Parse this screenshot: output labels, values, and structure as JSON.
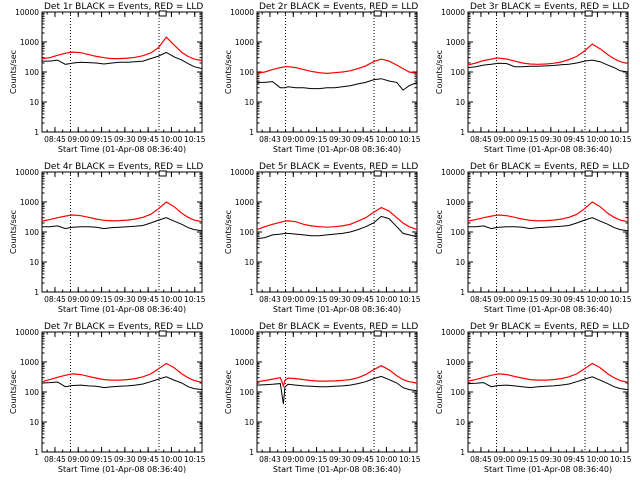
{
  "colors": {
    "events": "#000000",
    "lld": "#ff0000",
    "background": "#ffffff"
  },
  "chart_data": [
    {
      "type": "line",
      "detector": "1r",
      "title": "Det 1r BLACK = Events, RED = LLD",
      "xlabel": "Start Time (01-Apr-08 08:36:40)",
      "ylabel": "Counts/sec",
      "yscale": "log",
      "ylim": [
        1,
        10000
      ],
      "xlim_minutes": [
        0,
        103
      ],
      "x_tick_labels": [
        "08:45",
        "09:00",
        "09:15",
        "09:30",
        "09:45",
        "10:00",
        "10:15"
      ],
      "y_tick_labels": [
        "1",
        "10",
        "100",
        "1000",
        "10000"
      ],
      "marker_times": [
        "08:55",
        "09:52"
      ],
      "box_time": "09:54",
      "x_minutes": [
        0,
        5,
        10,
        15,
        18,
        20,
        25,
        30,
        35,
        40,
        45,
        50,
        55,
        60,
        65,
        70,
        75,
        80,
        85,
        90,
        94,
        98,
        103
      ],
      "series": [
        {
          "name": "Events",
          "values": [
            230,
            230,
            250,
            180,
            190,
            200,
            210,
            205,
            200,
            185,
            200,
            210,
            210,
            220,
            230,
            280,
            340,
            450,
            320,
            250,
            190,
            150,
            130
          ]
        },
        {
          "name": "LLD",
          "values": [
            280,
            300,
            360,
            420,
            450,
            460,
            440,
            380,
            330,
            300,
            280,
            280,
            290,
            310,
            350,
            430,
            650,
            1450,
            800,
            450,
            330,
            270,
            240
          ]
        }
      ]
    },
    {
      "type": "line",
      "detector": "2r",
      "title": "Det 2r BLACK = Events, RED = LLD",
      "xlabel": "Start Time (01-Apr-08 08:36:40)",
      "ylabel": "Counts/sec",
      "yscale": "log",
      "ylim": [
        1,
        10000
      ],
      "xlim_minutes": [
        0,
        103
      ],
      "x_tick_labels": [
        "08:43",
        "09:00",
        "09:15",
        "09:30",
        "09:45",
        "10:00",
        "10:15"
      ],
      "y_tick_labels": [
        "1",
        "10",
        "100",
        "1000",
        "10000"
      ],
      "marker_times": [
        "08:55",
        "09:52"
      ],
      "box_time": "09:54",
      "x_minutes": [
        0,
        5,
        10,
        15,
        18,
        20,
        25,
        30,
        35,
        40,
        45,
        50,
        55,
        60,
        65,
        70,
        75,
        80,
        85,
        90,
        94,
        98,
        103
      ],
      "series": [
        {
          "name": "Events",
          "values": [
            45,
            45,
            48,
            30,
            30,
            32,
            30,
            30,
            28,
            28,
            30,
            30,
            32,
            35,
            40,
            45,
            55,
            60,
            50,
            45,
            25,
            35,
            45
          ]
        },
        {
          "name": "LLD",
          "values": [
            90,
            100,
            120,
            140,
            150,
            150,
            140,
            120,
            105,
            95,
            90,
            95,
            100,
            110,
            130,
            160,
            220,
            270,
            230,
            170,
            130,
            100,
            90
          ]
        }
      ]
    },
    {
      "type": "line",
      "detector": "3r",
      "title": "Det 3r BLACK = Events, RED = LLD",
      "xlabel": "Start Time (01-Apr-08 08:36:40)",
      "ylabel": "Counts/sec",
      "yscale": "log",
      "ylim": [
        1,
        10000
      ],
      "xlim_minutes": [
        0,
        103
      ],
      "x_tick_labels": [
        "08:45",
        "09:00",
        "09:15",
        "09:30",
        "09:45",
        "10:00",
        "10:15"
      ],
      "y_tick_labels": [
        "1",
        "10",
        "100",
        "1000",
        "10000"
      ],
      "marker_times": [
        "08:55",
        "09:52"
      ],
      "box_time": "09:54",
      "x_minutes": [
        0,
        5,
        10,
        15,
        18,
        20,
        25,
        30,
        35,
        40,
        45,
        50,
        55,
        60,
        65,
        70,
        75,
        80,
        85,
        90,
        94,
        98,
        103
      ],
      "series": [
        {
          "name": "Events",
          "values": [
            140,
            150,
            170,
            180,
            190,
            195,
            190,
            150,
            150,
            155,
            155,
            160,
            165,
            175,
            180,
            200,
            230,
            250,
            220,
            170,
            140,
            110,
            100
          ]
        },
        {
          "name": "LLD",
          "values": [
            170,
            200,
            240,
            270,
            290,
            290,
            270,
            230,
            200,
            185,
            180,
            185,
            195,
            215,
            260,
            330,
            500,
            850,
            600,
            380,
            280,
            220,
            190
          ]
        }
      ]
    },
    {
      "type": "line",
      "detector": "4r",
      "title": "Det 4r BLACK = Events, RED = LLD",
      "xlabel": "Start Time (01-Apr-08 08:36:40)",
      "ylabel": "Counts/sec",
      "yscale": "log",
      "ylim": [
        1,
        10000
      ],
      "xlim_minutes": [
        0,
        103
      ],
      "x_tick_labels": [
        "08:45",
        "09:00",
        "09:15",
        "09:30",
        "09:45",
        "10:00",
        "10:15"
      ],
      "y_tick_labels": [
        "1",
        "10",
        "100",
        "1000",
        "10000"
      ],
      "marker_times": [
        "08:55",
        "09:52"
      ],
      "box_time": "09:54",
      "x_minutes": [
        0,
        5,
        10,
        15,
        18,
        20,
        25,
        30,
        35,
        40,
        45,
        50,
        55,
        60,
        65,
        70,
        75,
        80,
        85,
        90,
        94,
        98,
        103
      ],
      "series": [
        {
          "name": "Events",
          "values": [
            150,
            150,
            160,
            130,
            140,
            145,
            150,
            150,
            145,
            130,
            140,
            145,
            150,
            155,
            165,
            200,
            250,
            300,
            230,
            180,
            140,
            120,
            110
          ]
        },
        {
          "name": "LLD",
          "values": [
            230,
            260,
            300,
            340,
            360,
            370,
            350,
            310,
            270,
            245,
            235,
            240,
            250,
            270,
            310,
            390,
            600,
            1000,
            700,
            420,
            310,
            250,
            220
          ]
        }
      ]
    },
    {
      "type": "line",
      "detector": "5r",
      "title": "Det 5r BLACK = Events, RED = LLD",
      "xlabel": "Start Time (01-Apr-08 08:36:40)",
      "ylabel": "Counts/sec",
      "yscale": "log",
      "ylim": [
        1,
        10000
      ],
      "xlim_minutes": [
        0,
        103
      ],
      "x_tick_labels": [
        "08:43",
        "09:00",
        "09:15",
        "09:30",
        "09:45",
        "10:00",
        "10:15"
      ],
      "y_tick_labels": [
        "1",
        "10",
        "100",
        "1000",
        "10000"
      ],
      "marker_times": [
        "08:55",
        "09:52"
      ],
      "box_time": "09:54",
      "x_minutes": [
        0,
        5,
        10,
        15,
        18,
        20,
        25,
        30,
        35,
        40,
        45,
        50,
        55,
        60,
        65,
        70,
        75,
        80,
        85,
        90,
        94,
        98,
        103
      ],
      "series": [
        {
          "name": "Events",
          "values": [
            60,
            65,
            80,
            85,
            90,
            90,
            85,
            80,
            75,
            75,
            80,
            85,
            90,
            100,
            120,
            150,
            200,
            330,
            280,
            150,
            90,
            80,
            70
          ]
        },
        {
          "name": "LLD",
          "values": [
            120,
            150,
            180,
            210,
            230,
            235,
            220,
            180,
            160,
            150,
            145,
            150,
            160,
            180,
            230,
            300,
            450,
            650,
            500,
            300,
            200,
            150,
            120
          ]
        }
      ]
    },
    {
      "type": "line",
      "detector": "6r",
      "title": "Det 6r BLACK = Events, RED = LLD",
      "xlabel": "Start Time (01-Apr-08 08:36:40)",
      "ylabel": "Counts/sec",
      "yscale": "log",
      "ylim": [
        1,
        10000
      ],
      "xlim_minutes": [
        0,
        103
      ],
      "x_tick_labels": [
        "08:45",
        "09:00",
        "09:15",
        "09:30",
        "09:45",
        "10:00",
        "10:15"
      ],
      "y_tick_labels": [
        "1",
        "10",
        "100",
        "1000",
        "10000"
      ],
      "marker_times": [
        "08:55",
        "09:52"
      ],
      "box_time": "09:54",
      "x_minutes": [
        0,
        5,
        10,
        15,
        18,
        20,
        25,
        30,
        35,
        40,
        45,
        50,
        55,
        60,
        65,
        70,
        75,
        80,
        85,
        90,
        94,
        98,
        103
      ],
      "series": [
        {
          "name": "Events",
          "values": [
            150,
            150,
            160,
            130,
            140,
            145,
            150,
            150,
            145,
            130,
            140,
            145,
            150,
            155,
            165,
            200,
            250,
            300,
            230,
            180,
            140,
            120,
            110
          ]
        },
        {
          "name": "LLD",
          "values": [
            230,
            260,
            300,
            340,
            360,
            370,
            350,
            310,
            270,
            245,
            235,
            240,
            250,
            270,
            310,
            390,
            600,
            1000,
            700,
            420,
            310,
            250,
            220
          ]
        }
      ]
    },
    {
      "type": "line",
      "detector": "7r",
      "title": "Det 7r BLACK = Events, RED = LLD",
      "xlabel": "Start Time (01-Apr-08 08:36:40)",
      "ylabel": "Counts/sec",
      "yscale": "log",
      "ylim": [
        1,
        10000
      ],
      "xlim_minutes": [
        0,
        103
      ],
      "x_tick_labels": [
        "08:45",
        "09:00",
        "09:15",
        "09:30",
        "09:45",
        "10:00",
        "10:15"
      ],
      "y_tick_labels": [
        "1",
        "10",
        "100",
        "1000",
        "10000"
      ],
      "marker_times": [
        "08:55",
        "09:52"
      ],
      "box_time": "09:54",
      "x_minutes": [
        0,
        5,
        10,
        15,
        18,
        20,
        25,
        30,
        35,
        40,
        45,
        50,
        55,
        60,
        65,
        70,
        75,
        80,
        85,
        90,
        94,
        98,
        103
      ],
      "series": [
        {
          "name": "Events",
          "values": [
            200,
            205,
            215,
            150,
            160,
            165,
            170,
            160,
            155,
            140,
            150,
            155,
            160,
            170,
            185,
            220,
            270,
            320,
            250,
            200,
            150,
            130,
            120
          ]
        },
        {
          "name": "LLD",
          "values": [
            220,
            260,
            310,
            360,
            390,
            400,
            380,
            330,
            290,
            260,
            250,
            250,
            260,
            280,
            320,
            400,
            600,
            900,
            650,
            400,
            300,
            240,
            210
          ]
        }
      ]
    },
    {
      "type": "line",
      "detector": "8r",
      "title": "Det 8r BLACK = Events, RED = LLD",
      "xlabel": "Start Time (01-Apr-08 08:36:40)",
      "ylabel": "Counts/sec",
      "yscale": "log",
      "ylim": [
        1,
        10000
      ],
      "xlim_minutes": [
        0,
        103
      ],
      "x_tick_labels": [
        "08:43",
        "09:00",
        "09:15",
        "09:30",
        "09:45",
        "10:00",
        "10:15"
      ],
      "y_tick_labels": [
        "1",
        "10",
        "100",
        "1000",
        "10000"
      ],
      "marker_times": [
        "08:55",
        "09:52"
      ],
      "box_time": "09:54",
      "x_minutes": [
        0,
        5,
        10,
        15,
        17,
        18,
        20,
        25,
        30,
        35,
        40,
        45,
        50,
        55,
        60,
        65,
        70,
        75,
        80,
        85,
        90,
        94,
        98,
        103
      ],
      "series": [
        {
          "name": "Events",
          "values": [
            170,
            175,
            180,
            190,
            40,
            150,
            180,
            170,
            160,
            155,
            150,
            150,
            155,
            160,
            170,
            190,
            220,
            280,
            330,
            260,
            200,
            140,
            120,
            110
          ]
        },
        {
          "name": "LLD",
          "values": [
            220,
            240,
            270,
            300,
            160,
            250,
            290,
            280,
            260,
            240,
            230,
            230,
            235,
            245,
            260,
            300,
            380,
            550,
            750,
            550,
            350,
            260,
            220,
            200
          ]
        }
      ]
    },
    {
      "type": "line",
      "detector": "9r",
      "title": "Det 9r BLACK = Events, RED = LLD",
      "xlabel": "Start Time (01-Apr-08 08:36:40)",
      "ylabel": "Counts/sec",
      "yscale": "log",
      "ylim": [
        1,
        10000
      ],
      "xlim_minutes": [
        0,
        103
      ],
      "x_tick_labels": [
        "08:45",
        "09:00",
        "09:15",
        "09:30",
        "09:45",
        "10:00",
        "10:15"
      ],
      "y_tick_labels": [
        "1",
        "10",
        "100",
        "1000",
        "10000"
      ],
      "marker_times": [
        "08:55",
        "09:52"
      ],
      "box_time": "09:54",
      "x_minutes": [
        0,
        5,
        10,
        15,
        18,
        20,
        25,
        30,
        35,
        40,
        45,
        50,
        55,
        60,
        65,
        70,
        75,
        80,
        85,
        90,
        94,
        98,
        103
      ],
      "series": [
        {
          "name": "Events",
          "values": [
            190,
            195,
            205,
            150,
            160,
            165,
            170,
            160,
            150,
            140,
            150,
            155,
            160,
            170,
            185,
            220,
            270,
            320,
            250,
            190,
            150,
            130,
            120
          ]
        },
        {
          "name": "LLD",
          "values": [
            230,
            260,
            310,
            360,
            390,
            400,
            380,
            330,
            290,
            260,
            250,
            250,
            260,
            280,
            320,
            400,
            600,
            900,
            650,
            400,
            300,
            240,
            210
          ]
        }
      ]
    }
  ]
}
